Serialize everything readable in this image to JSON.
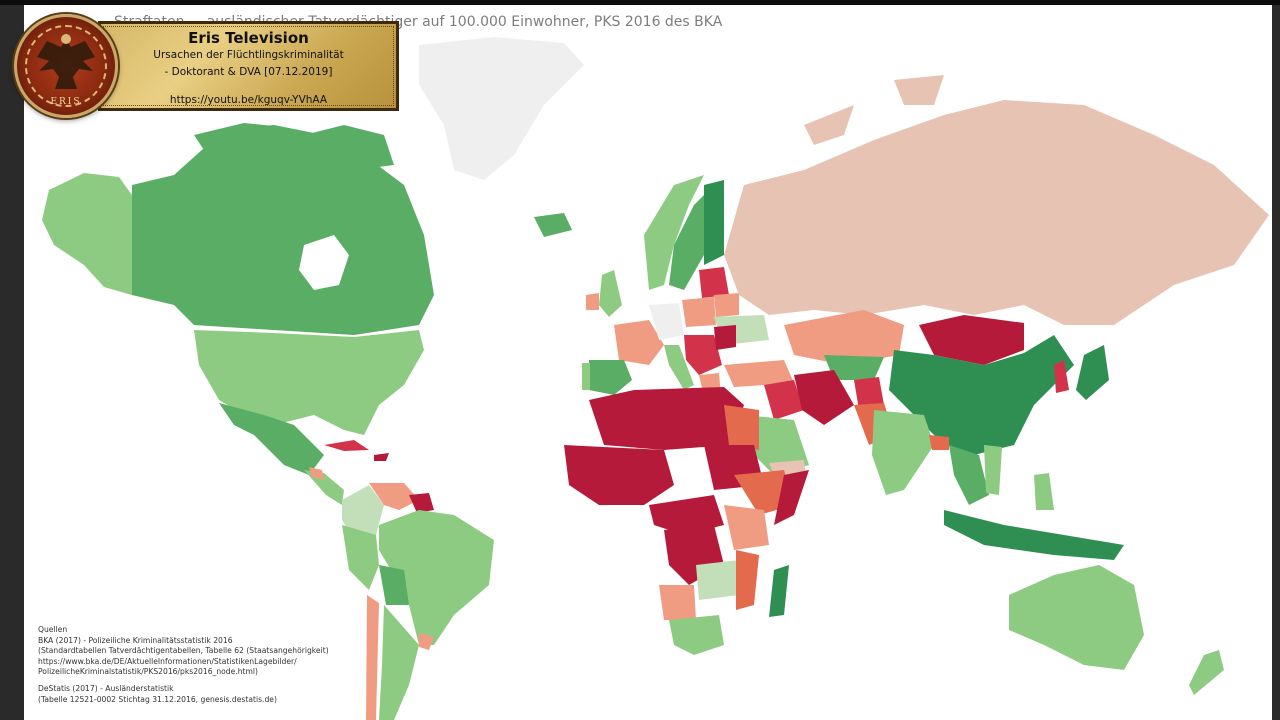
{
  "map": {
    "title": "Straftaten ... ausländischer Tatverdächtiger auf 100.000 Einwohner, PKS 2016 des BKA",
    "colors": {
      "ocean": "#ffffff",
      "no_data": "#efefef",
      "green_dark": "#2f8f52",
      "green_mid": "#5aad65",
      "green_light": "#8ecb82",
      "green_pale": "#c3dfb9",
      "salmon_light": "#e6c3b3",
      "salmon": "#ef9c82",
      "orange_red": "#e46a4e",
      "red": "#d2334a",
      "red_dark": "#b51a3a"
    }
  },
  "sources": {
    "heading": "Quellen",
    "bka_line1": "BKA (2017) - Polizeiliche Kriminalitätsstatistik 2016",
    "bka_line2": "(Standardtabellen Tatverdächtigentabellen, Tabelle 62 (Staatsangehörigkeit)",
    "bka_line3": "https://www.bka.de/DE/AktuelleInformationen/StatistikenLagebilder/",
    "bka_line4": "PolizeilicheKriminalstatistik/PKS2016/pks2016_node.html)",
    "destatis_line1": "DeStatis (2017) - Ausländerstatistik",
    "destatis_line2": "(Tabelle 12521-0002 Stichtag 31.12.2016, genesis.destatis.de)"
  },
  "overlay": {
    "channel_name": "Eris Television",
    "line1": "Ursachen der Flüchtlingskriminalität",
    "line2": "- Doktorant & DVA [07.12.2019]",
    "link": "https://youtu.be/kguqv-YVhAA",
    "medal_text": "ERIS"
  }
}
